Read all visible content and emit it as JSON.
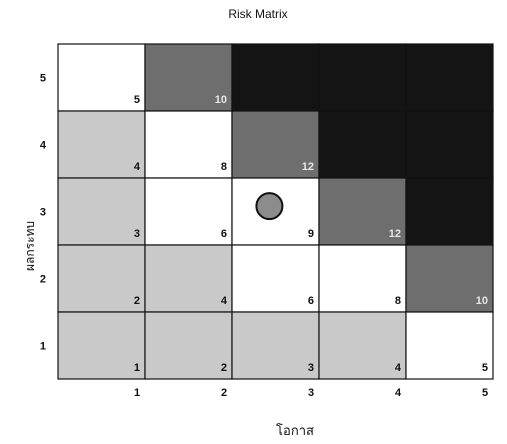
{
  "chart_data": {
    "type": "heatmap",
    "title": "Risk Matrix",
    "xlabel": "โอกาส",
    "ylabel": "ผลกระทบ",
    "x_ticks": [
      "1",
      "2",
      "3",
      "4",
      "5"
    ],
    "y_ticks": [
      "1",
      "2",
      "3",
      "4",
      "5"
    ],
    "rows": [
      {
        "impact": 5,
        "cells": [
          {
            "likelihood": 1,
            "score": "5",
            "level": "white"
          },
          {
            "likelihood": 2,
            "score": "10",
            "level": "gray"
          },
          {
            "likelihood": 3,
            "score": "",
            "level": "black"
          },
          {
            "likelihood": 4,
            "score": "",
            "level": "black"
          },
          {
            "likelihood": 5,
            "score": "",
            "level": "black"
          }
        ]
      },
      {
        "impact": 4,
        "cells": [
          {
            "likelihood": 1,
            "score": "4",
            "level": "light"
          },
          {
            "likelihood": 2,
            "score": "8",
            "level": "white"
          },
          {
            "likelihood": 3,
            "score": "12",
            "level": "gray"
          },
          {
            "likelihood": 4,
            "score": "",
            "level": "black"
          },
          {
            "likelihood": 5,
            "score": "",
            "level": "black"
          }
        ]
      },
      {
        "impact": 3,
        "cells": [
          {
            "likelihood": 1,
            "score": "3",
            "level": "light"
          },
          {
            "likelihood": 2,
            "score": "6",
            "level": "white"
          },
          {
            "likelihood": 3,
            "score": "9",
            "level": "white"
          },
          {
            "likelihood": 4,
            "score": "12",
            "level": "gray"
          },
          {
            "likelihood": 5,
            "score": "",
            "level": "black"
          }
        ]
      },
      {
        "impact": 2,
        "cells": [
          {
            "likelihood": 1,
            "score": "2",
            "level": "light"
          },
          {
            "likelihood": 2,
            "score": "4",
            "level": "light"
          },
          {
            "likelihood": 3,
            "score": "6",
            "level": "white"
          },
          {
            "likelihood": 4,
            "score": "8",
            "level": "white"
          },
          {
            "likelihood": 5,
            "score": "10",
            "level": "gray"
          }
        ]
      },
      {
        "impact": 1,
        "cells": [
          {
            "likelihood": 1,
            "score": "1",
            "level": "light"
          },
          {
            "likelihood": 2,
            "score": "2",
            "level": "light"
          },
          {
            "likelihood": 3,
            "score": "3",
            "level": "light"
          },
          {
            "likelihood": 4,
            "score": "4",
            "level": "light"
          },
          {
            "likelihood": 5,
            "score": "5",
            "level": "white"
          }
        ]
      }
    ],
    "marker": {
      "likelihood": 3,
      "impact": 3,
      "shape": "circle"
    },
    "level_colors": {
      "white": "#ffffff",
      "light": "#c9c9c9",
      "gray": "#6e6e6e",
      "black": "#141414"
    },
    "marker_color": "#8c8c8c",
    "grid_line_color": "#111111"
  }
}
